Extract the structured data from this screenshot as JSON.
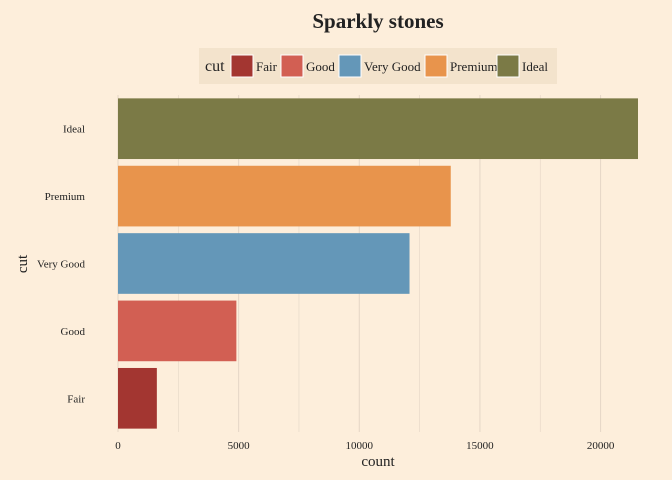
{
  "chart_data": {
    "type": "bar",
    "orientation": "horizontal",
    "title": "Sparkly stones",
    "xlabel": "count",
    "ylabel": "cut",
    "categories": [
      "Fair",
      "Good",
      "Very Good",
      "Premium",
      "Ideal"
    ],
    "values": [
      1610,
      4906,
      12082,
      13791,
      21551
    ],
    "colors": [
      "#a33631",
      "#d25f53",
      "#6497b8",
      "#e8944c",
      "#7b7a46"
    ],
    "xlim": [
      0,
      21551
    ],
    "xticks": [
      0,
      5000,
      10000,
      15000,
      20000
    ],
    "grid": true,
    "legend": {
      "title": "cut",
      "position": "top",
      "items": [
        "Fair",
        "Good",
        "Very Good",
        "Premium",
        "Ideal"
      ]
    }
  },
  "colors": {
    "background": "#fdeedb",
    "legend_background": "#f3e3cc",
    "grid": "#e5d6c6"
  }
}
